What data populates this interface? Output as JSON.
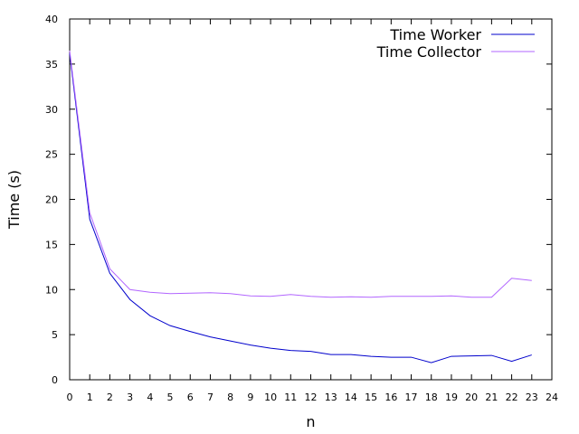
{
  "chart_data": {
    "type": "line",
    "title": "",
    "xlabel": "n",
    "ylabel": "Time (s)",
    "xlim": [
      0,
      24
    ],
    "ylim": [
      0,
      40
    ],
    "x_ticks": [
      "0",
      "1",
      "2",
      "3",
      "4",
      "5",
      "6",
      "7",
      "8",
      "9",
      "10",
      "11",
      "12",
      "13",
      "14",
      "15",
      "16",
      "17",
      "18",
      "19",
      "20",
      "21",
      "22",
      "23",
      "24"
    ],
    "y_ticks": [
      "0",
      "5",
      "10",
      "15",
      "20",
      "25",
      "30",
      "35",
      "40"
    ],
    "grid": false,
    "legend_position": "top-right",
    "x": [
      0,
      1,
      2,
      3,
      4,
      5,
      6,
      7,
      8,
      9,
      10,
      11,
      12,
      13,
      14,
      15,
      16,
      17,
      18,
      19,
      20,
      21,
      22,
      23
    ],
    "series": [
      {
        "name": "Time Worker",
        "color": "#0000cc",
        "values": [
          36.2,
          17.8,
          11.8,
          8.9,
          7.1,
          6.0,
          5.35,
          4.75,
          4.3,
          3.85,
          3.5,
          3.25,
          3.15,
          2.8,
          2.8,
          2.6,
          2.5,
          2.5,
          1.9,
          2.6,
          2.65,
          2.7,
          2.05,
          2.75
        ]
      },
      {
        "name": "Time Collector",
        "color": "#b266ff",
        "values": [
          36.5,
          18.5,
          12.3,
          10.0,
          9.7,
          9.55,
          9.6,
          9.65,
          9.55,
          9.3,
          9.25,
          9.45,
          9.25,
          9.15,
          9.2,
          9.15,
          9.25,
          9.25,
          9.25,
          9.3,
          9.15,
          9.15,
          11.25,
          11.0
        ]
      }
    ]
  }
}
